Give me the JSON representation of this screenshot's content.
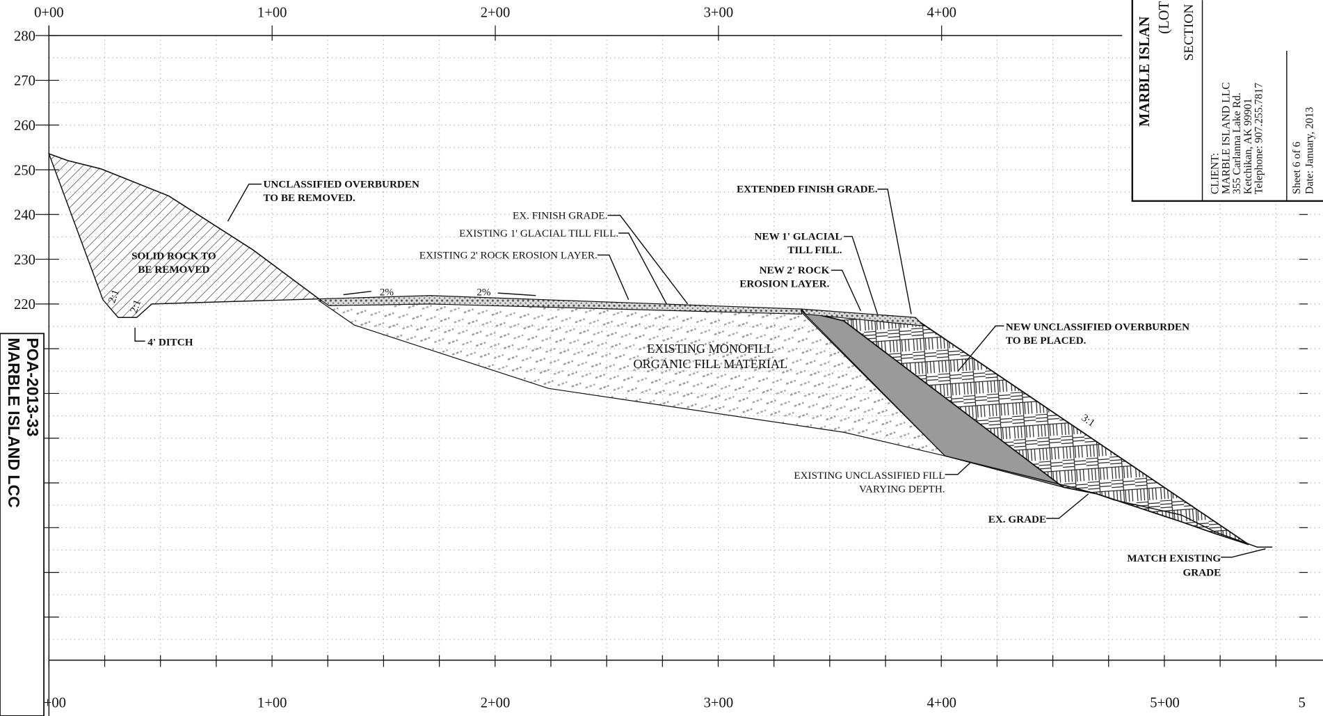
{
  "stamp": [
    "POA-2013-33",
    "MARBLE ISLAND LCC"
  ],
  "title_block": {
    "project": "MARBLE ISLAN",
    "lot": "(LOT",
    "sheet_title": "SECTION",
    "client": [
      "CLIENT:",
      "MARBLE ISLAND LLC",
      "355 Carlanna Lake Rd.",
      "Ketchikan, AK 99901",
      "Telephone: 907.255.7817"
    ],
    "sheet": [
      "Sheet 6 of 6",
      "Date: January, 2013"
    ]
  },
  "axes": {
    "top_stations": [
      "0+00",
      "1+00",
      "2+00",
      "3+00",
      "4+00"
    ],
    "bottom_stations": [
      "+00",
      "1+00",
      "2+00",
      "3+00",
      "4+00",
      "5+00",
      "5"
    ],
    "elevations": [
      280,
      270,
      260,
      250,
      240,
      230,
      220
    ]
  },
  "annotations": {
    "overburden_removed": [
      "UNCLASSIFIED OVERBURDEN",
      "TO BE REMOVED."
    ],
    "solid_rock": [
      "SOLID ROCK TO",
      "BE REMOVED"
    ],
    "ditch": "4' DITCH",
    "ex_finish_grade": "EX. FINISH GRADE.",
    "ex_till": "EXISTING 1' GLACIAL TILL FILL.",
    "ex_rock": "EXISTING 2' ROCK EROSION LAYER.",
    "ext_finish_grade": "EXTENDED FINISH GRADE.",
    "new_till": [
      "NEW 1' GLACIAL",
      "TILL FILL."
    ],
    "new_rock": [
      "NEW 2' ROCK",
      "EROSION LAYER."
    ],
    "monofill": [
      "EXISTING MONOFILL",
      "ORGANIC FILL MATERIAL"
    ],
    "new_overburden": [
      "NEW UNCLASSIFIED OVERBURDEN",
      "TO BE PLACED."
    ],
    "ex_unclassified": [
      "EXISTING UNCLASSIFIED FILL",
      "VARYING DEPTH."
    ],
    "ex_grade": "EX. GRADE",
    "match": [
      "MATCH EXISTING",
      "GRADE"
    ],
    "slopes": [
      "2:1",
      "2:1",
      "2%",
      "2%",
      "3:1"
    ]
  }
}
